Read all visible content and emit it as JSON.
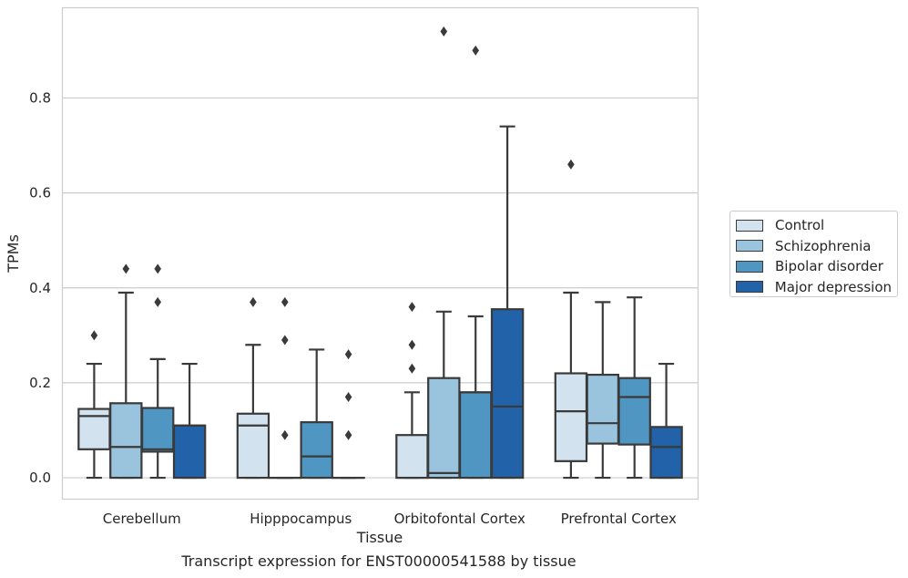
{
  "caption": "Transcript expression for ENST00000541588 by tissue",
  "chart_data": {
    "type": "box",
    "title": "",
    "xlabel": "Tissue",
    "ylabel": "TPMs",
    "ylim": [
      -0.045,
      0.99
    ],
    "yticks": [
      "0.0",
      "0.2",
      "0.4",
      "0.6",
      "0.8"
    ],
    "ytick_values": [
      0.0,
      0.2,
      0.4,
      0.6,
      0.8
    ],
    "grid": true,
    "legend_position": "right",
    "categories": [
      "Cerebellum",
      "Hipppocampus",
      "Orbitofontal Cortex",
      "Prefrontal Cortex"
    ],
    "series": [
      {
        "name": "Control",
        "color": "#d2e2ef",
        "boxes": [
          {
            "whislo": 0.0,
            "q1": 0.06,
            "med": 0.13,
            "q3": 0.145,
            "whishi": 0.24,
            "fliers": [
              0.3
            ]
          },
          {
            "whislo": 0.0,
            "q1": 0.0,
            "med": 0.11,
            "q3": 0.135,
            "whishi": 0.28,
            "fliers": [
              0.37
            ]
          },
          {
            "whislo": 0.0,
            "q1": 0.0,
            "med": 0.0,
            "q3": 0.09,
            "whishi": 0.18,
            "fliers": [
              0.23,
              0.28,
              0.36
            ]
          },
          {
            "whislo": 0.0,
            "q1": 0.035,
            "med": 0.14,
            "q3": 0.22,
            "whishi": 0.39,
            "fliers": [
              0.66
            ]
          }
        ]
      },
      {
        "name": "Schizophrenia",
        "color": "#9ac4de",
        "boxes": [
          {
            "whislo": 0.0,
            "q1": 0.0,
            "med": 0.065,
            "q3": 0.157,
            "whishi": 0.39,
            "fliers": [
              0.44
            ]
          },
          {
            "whislo": 0.0,
            "q1": 0.0,
            "med": 0.0,
            "q3": 0.0,
            "whishi": 0.0,
            "fliers": [
              0.09,
              0.29,
              0.37
            ]
          },
          {
            "whislo": 0.0,
            "q1": 0.0,
            "med": 0.01,
            "q3": 0.21,
            "whishi": 0.35,
            "fliers": [
              0.94
            ]
          },
          {
            "whislo": 0.0,
            "q1": 0.072,
            "med": 0.115,
            "q3": 0.217,
            "whishi": 0.37,
            "fliers": []
          }
        ]
      },
      {
        "name": "Bipolar disorder",
        "color": "#5096c3",
        "boxes": [
          {
            "whislo": 0.0,
            "q1": 0.055,
            "med": 0.06,
            "q3": 0.147,
            "whishi": 0.25,
            "fliers": [
              0.37,
              0.44
            ]
          },
          {
            "whislo": 0.0,
            "q1": 0.0,
            "med": 0.045,
            "q3": 0.117,
            "whishi": 0.27,
            "fliers": []
          },
          {
            "whislo": 0.0,
            "q1": 0.0,
            "med": 0.18,
            "q3": 0.18,
            "whishi": 0.34,
            "fliers": [
              0.9
            ]
          },
          {
            "whislo": 0.0,
            "q1": 0.07,
            "med": 0.17,
            "q3": 0.21,
            "whishi": 0.38,
            "fliers": []
          }
        ]
      },
      {
        "name": "Major depression",
        "color": "#2262a8",
        "boxes": [
          {
            "whislo": 0.0,
            "q1": 0.0,
            "med": 0.11,
            "q3": 0.11,
            "whishi": 0.24,
            "fliers": []
          },
          {
            "whislo": 0.0,
            "q1": 0.0,
            "med": 0.0,
            "q3": 0.0,
            "whishi": 0.0,
            "fliers": [
              0.09,
              0.17,
              0.26
            ]
          },
          {
            "whislo": 0.0,
            "q1": 0.0,
            "med": 0.15,
            "q3": 0.355,
            "whishi": 0.74,
            "fliers": []
          },
          {
            "whislo": 0.0,
            "q1": 0.0,
            "med": 0.065,
            "q3": 0.107,
            "whishi": 0.24,
            "fliers": []
          }
        ]
      }
    ]
  }
}
